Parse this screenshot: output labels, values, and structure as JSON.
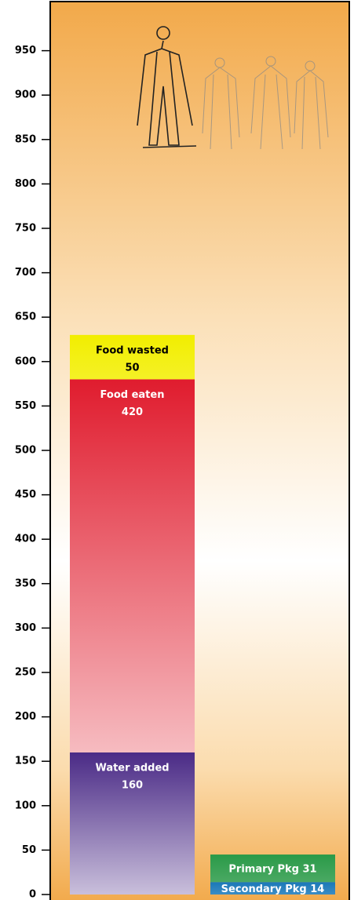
{
  "chart_data": {
    "type": "stacked-bar",
    "categories": [
      null,
      null
    ],
    "series": [
      {
        "name": "Water added",
        "color": "#4a2a86",
        "text_color": "#ffffff",
        "values": [
          160,
          null
        ]
      },
      {
        "name": "Food eaten",
        "color": "#e01c2e",
        "text_color": "#ffffff",
        "values": [
          420,
          null
        ]
      },
      {
        "name": "Food wasted",
        "color": "#f2ee00",
        "text_color": "#000000",
        "values": [
          50,
          null
        ]
      },
      {
        "name": "Secondary Pkg",
        "color": "#1a78b8",
        "text_color": "#ffffff",
        "values": [
          null,
          14
        ]
      },
      {
        "name": "Primary Pkg",
        "color": "#2a9a48",
        "text_color": "#ffffff",
        "values": [
          null,
          31
        ]
      }
    ],
    "ylim": [
      0,
      1000
    ],
    "yticks": [
      0,
      50,
      100,
      150,
      200,
      250,
      300,
      350,
      400,
      450,
      500,
      550,
      600,
      650,
      700,
      750,
      800,
      850,
      900,
      950
    ]
  }
}
